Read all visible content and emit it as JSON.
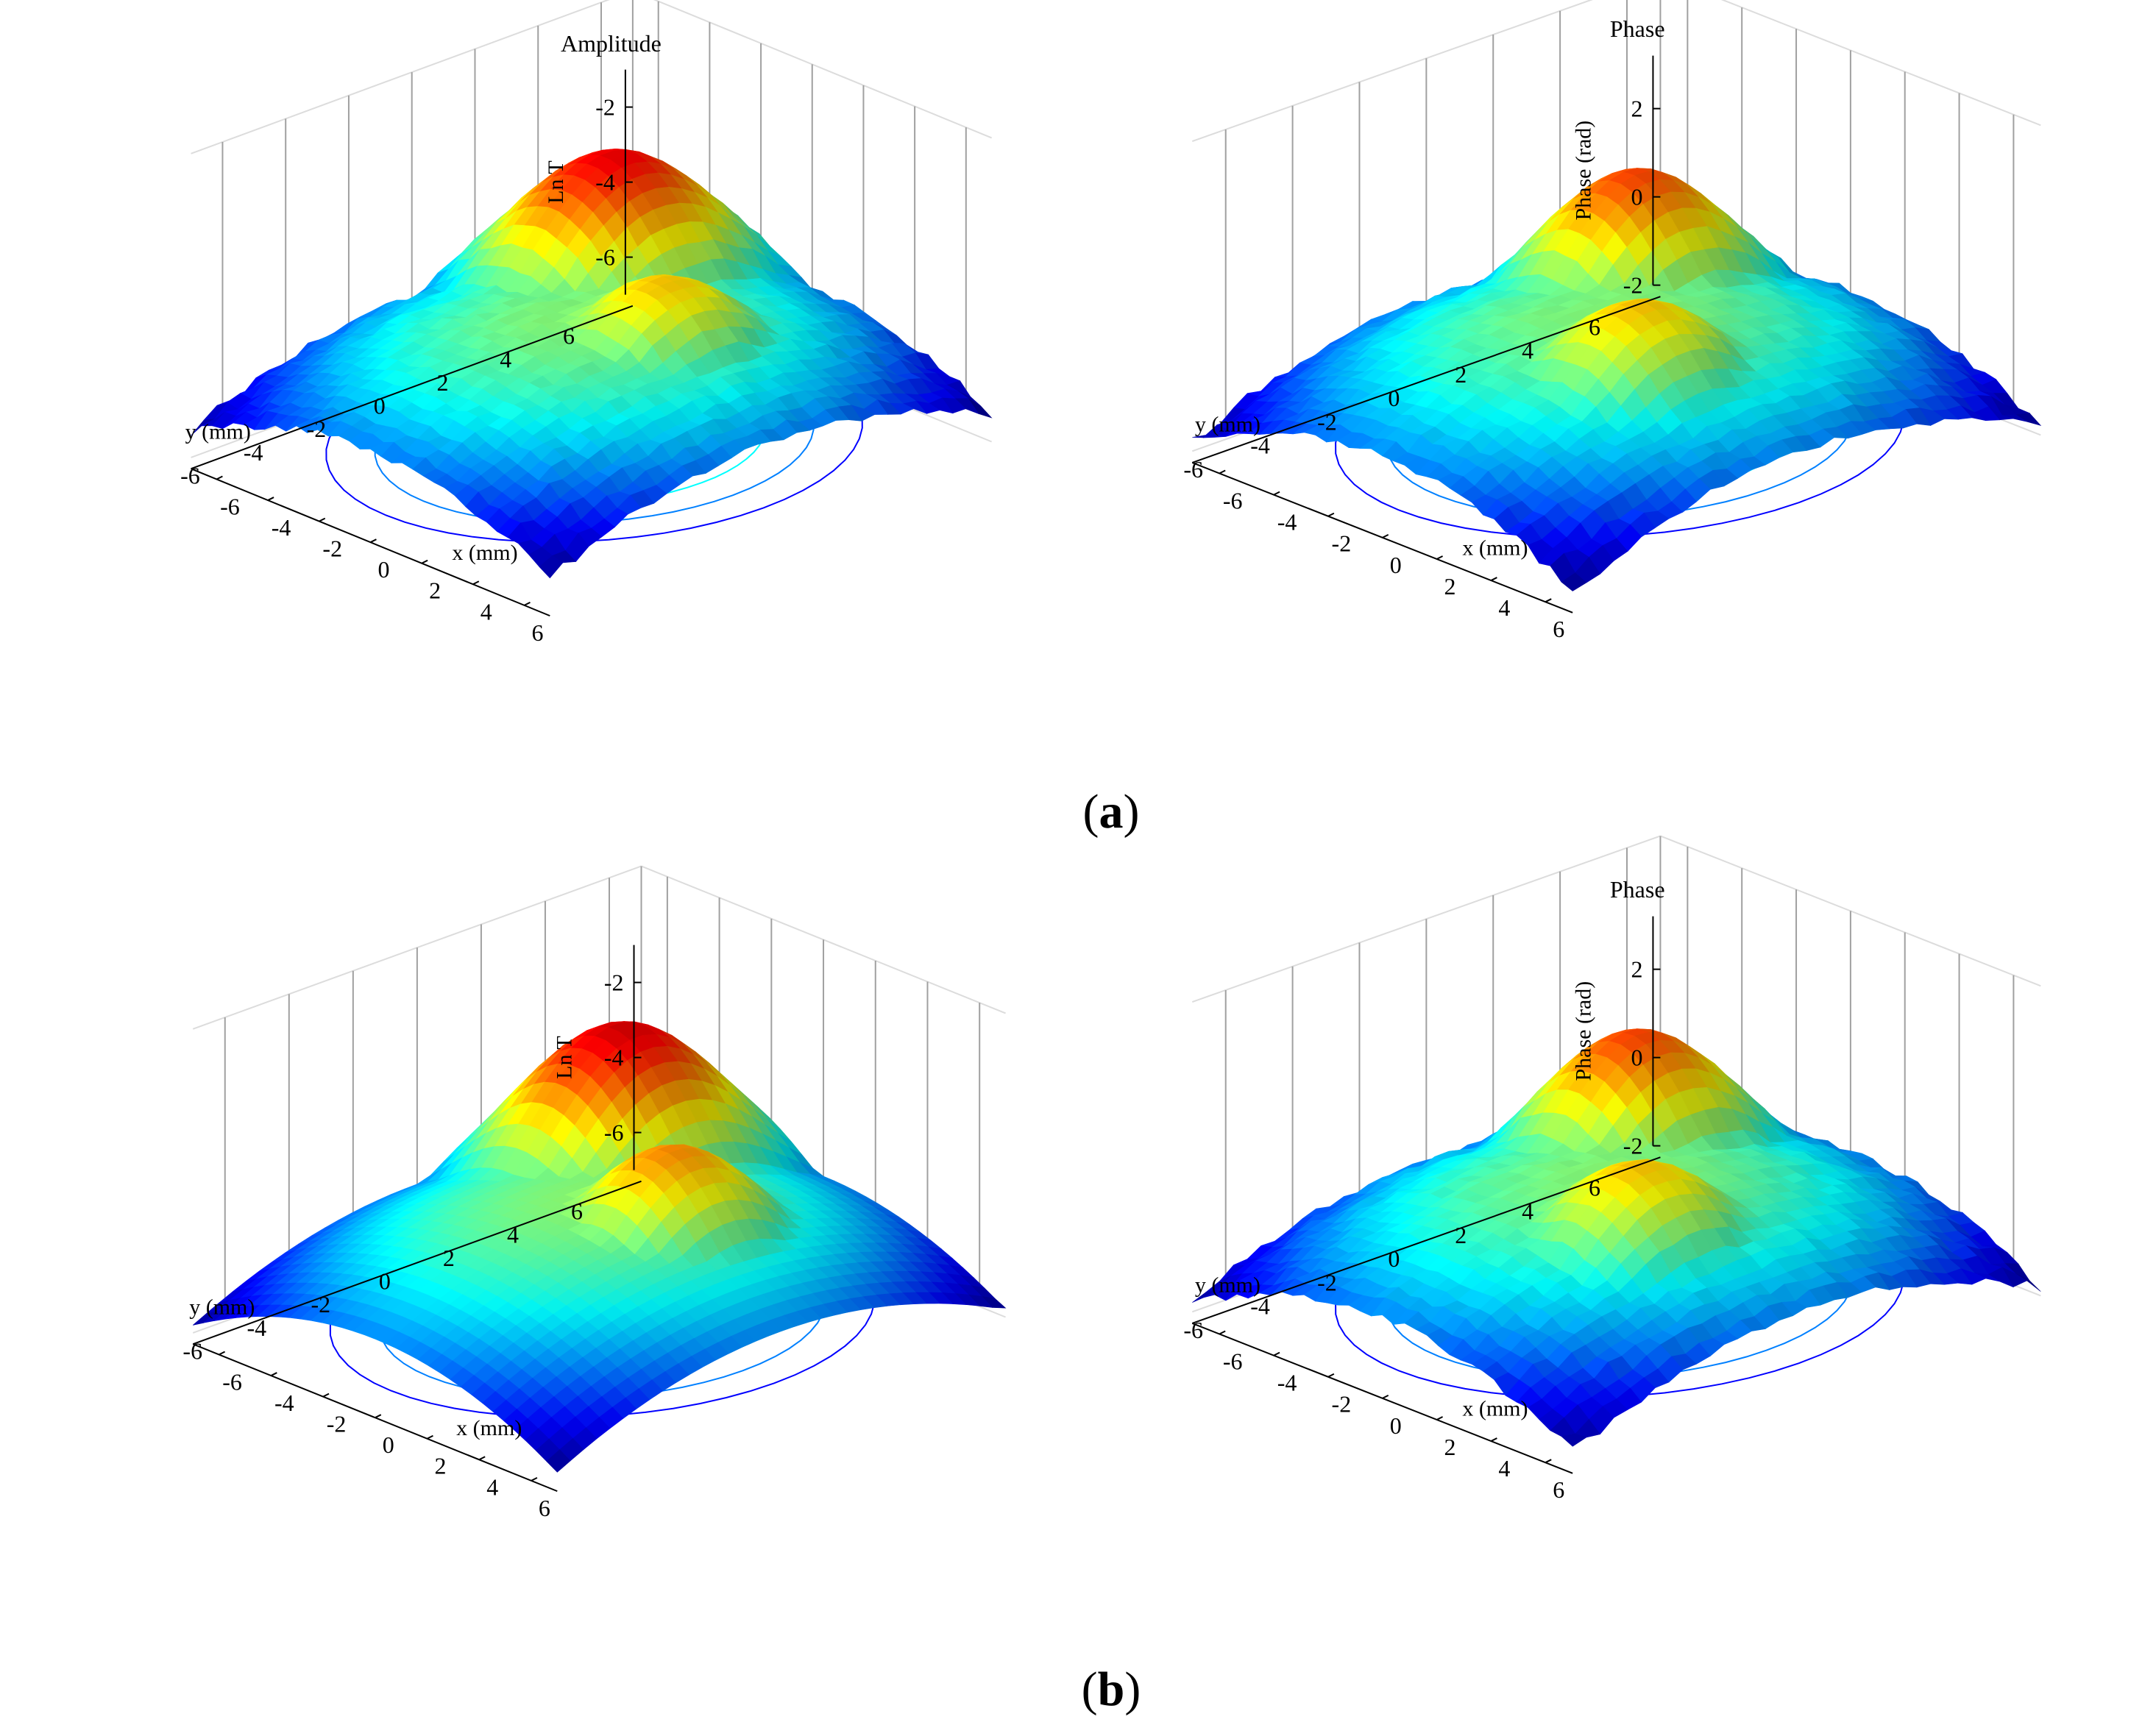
{
  "captions": {
    "a": "a",
    "b": "b"
  },
  "colormap": [
    "#00008f",
    "#0000ff",
    "#0080ff",
    "#00ffff",
    "#80ff80",
    "#ffff00",
    "#ff8000",
    "#ff0000",
    "#800000"
  ],
  "chart_data": [
    {
      "panel": "a-left",
      "type": "surface3d",
      "title": "Amplitude",
      "zlabel": "Ln T",
      "xlabel": "x (mm)",
      "ylabel": "y (mm)",
      "xticks": [
        -6,
        -4,
        -2,
        0,
        2,
        4,
        6
      ],
      "yticks": [
        -6,
        -4,
        -2,
        0,
        2,
        4,
        6
      ],
      "zticks": [
        -6,
        -4,
        -2
      ],
      "xlim": [
        -7,
        7
      ],
      "ylim": [
        -7,
        7
      ],
      "zlim": [
        -7,
        -1
      ],
      "grid": true,
      "noisy": true,
      "contour_projection": true,
      "peaks": [
        {
          "x": -3.5,
          "y": 3.5,
          "z": -1.2,
          "sharp": true
        },
        {
          "x": 1.5,
          "y": 1.0,
          "z": -2.4
        }
      ],
      "edge_z": -6.3
    },
    {
      "panel": "a-right",
      "type": "surface3d",
      "title": "Phase",
      "zlabel": "Phase (rad)",
      "xlabel": "x (mm)",
      "ylabel": "y (mm)",
      "xticks": [
        -6,
        -4,
        -2,
        0,
        2,
        4,
        6
      ],
      "yticks": [
        -6,
        -4,
        -2,
        0,
        2,
        4,
        6
      ],
      "zticks": [
        -2,
        0,
        2
      ],
      "xlim": [
        -7,
        7
      ],
      "ylim": [
        -7,
        7
      ],
      "zlim": [
        -2,
        3.2
      ],
      "grid": true,
      "noisy": true,
      "contour_projection": true,
      "peaks": [
        {
          "x": -3.0,
          "y": 3.0,
          "z": 2.6
        },
        {
          "x": 2.0,
          "y": -1.0,
          "z": 1.9
        }
      ],
      "edge_z": -1.8
    },
    {
      "panel": "b-left",
      "type": "surface3d",
      "title": "",
      "zlabel": "Ln T",
      "xlabel": "x (mm)",
      "ylabel": "y (mm)",
      "xticks": [
        -6,
        -4,
        -2,
        0,
        2,
        4,
        6
      ],
      "yticks": [
        -6,
        -4,
        -2,
        0,
        2,
        4,
        6
      ],
      "zticks": [
        -6,
        -4,
        -2
      ],
      "xlim": [
        -7,
        7
      ],
      "ylim": [
        -7,
        7
      ],
      "zlim": [
        -7,
        -1
      ],
      "grid": true,
      "noisy": false,
      "contour_projection": true,
      "peaks": [
        {
          "x": -3.5,
          "y": 3.5,
          "z": -1.1,
          "sharp": true
        },
        {
          "x": 1.5,
          "y": 1.0,
          "z": -2.2
        }
      ],
      "edge_z": -6.8
    },
    {
      "panel": "b-right",
      "type": "surface3d",
      "title": "Phase",
      "zlabel": "Phase (rad)",
      "xlabel": "x (mm)",
      "ylabel": "y (mm)",
      "xticks": [
        -6,
        -4,
        -2,
        0,
        2,
        4,
        6
      ],
      "yticks": [
        -6,
        -4,
        -2,
        0,
        2,
        4,
        6
      ],
      "zticks": [
        -2,
        0,
        2
      ],
      "xlim": [
        -7,
        7
      ],
      "ylim": [
        -7,
        7
      ],
      "zlim": [
        -2,
        3.2
      ],
      "grid": true,
      "noisy": true,
      "contour_projection": true,
      "peaks": [
        {
          "x": -3.0,
          "y": 3.0,
          "z": 2.6
        },
        {
          "x": 2.0,
          "y": -1.0,
          "z": 1.9
        }
      ],
      "edge_z": -1.8
    }
  ]
}
